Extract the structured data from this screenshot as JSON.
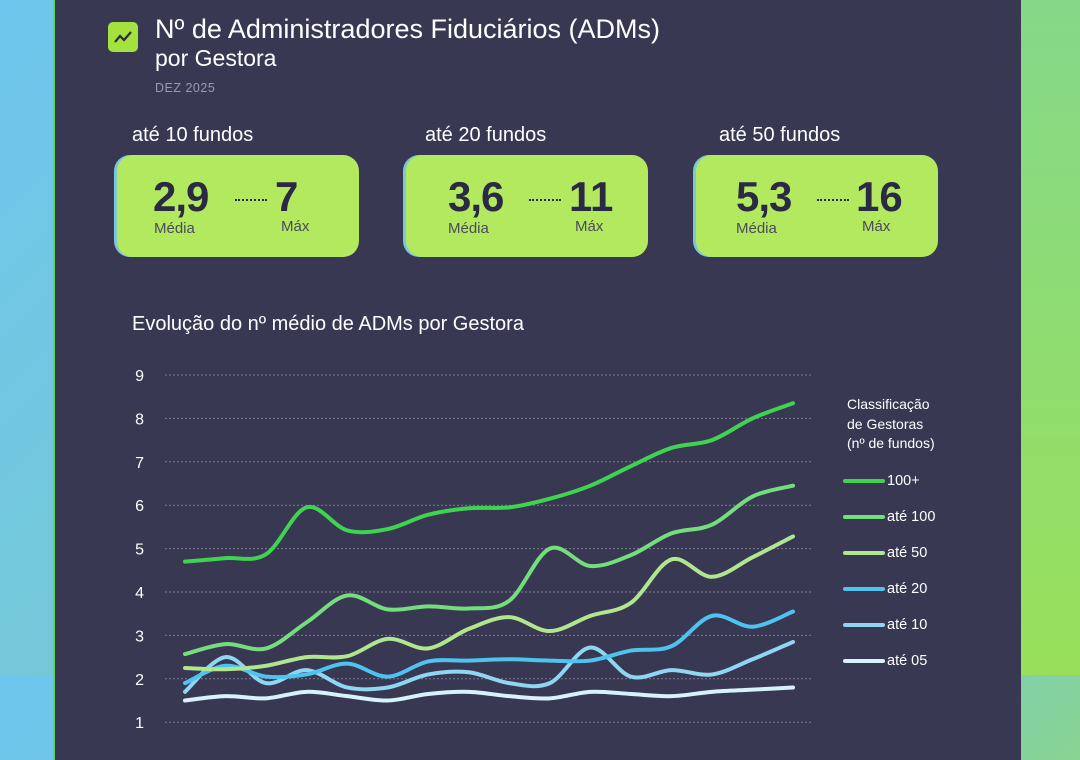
{
  "header": {
    "title": "Nº de Administradores Fiduciários (ADMs)",
    "subtitle": "por Gestora",
    "date": "DEZ 2025",
    "icon": "trending-up-icon"
  },
  "kpis": [
    {
      "label": "até 10 fundos",
      "avg": "2,9",
      "avg_label": "Média",
      "max": "7",
      "max_label": "Máx"
    },
    {
      "label": "até 20 fundos",
      "avg": "3,6",
      "avg_label": "Média",
      "max": "11",
      "max_label": "Máx"
    },
    {
      "label": "até 50 fundos",
      "avg": "5,3",
      "avg_label": "Média",
      "max": "16",
      "max_label": "Máx"
    }
  ],
  "colors": {
    "panel": "#383853",
    "card": "#b3e95e",
    "accent": "#a6e23d"
  },
  "chart_data": {
    "type": "line",
    "title": "Evolução do nº médio de ADMs por Gestora",
    "legend_title": [
      "Classificação",
      "de Gestoras",
      "(nº de fundos)"
    ],
    "legend_position": "right",
    "grid": true,
    "ylim": [
      0,
      9
    ],
    "yticks": [
      1,
      2,
      3,
      4,
      5,
      6,
      7,
      8,
      9
    ],
    "series": [
      {
        "name": "100+",
        "color": "#3fd44f",
        "values": [
          4.7,
          4.78,
          4.87,
          5.95,
          5.42,
          5.45,
          5.78,
          5.93,
          5.95,
          6.15,
          6.45,
          6.9,
          7.32,
          7.5,
          8.0,
          8.35
        ]
      },
      {
        "name": "até 100",
        "color": "#74dd7c",
        "values": [
          2.57,
          2.8,
          2.7,
          3.3,
          3.92,
          3.6,
          3.67,
          3.62,
          3.8,
          5.0,
          4.6,
          4.85,
          5.35,
          5.55,
          6.2,
          6.45
        ]
      },
      {
        "name": "até 50",
        "color": "#b0e68e",
        "values": [
          2.25,
          2.22,
          2.3,
          2.5,
          2.52,
          2.92,
          2.7,
          3.15,
          3.42,
          3.1,
          3.45,
          3.75,
          4.75,
          4.35,
          4.8,
          5.28
        ]
      },
      {
        "name": "até 20",
        "color": "#4fc3f0",
        "values": [
          1.9,
          2.3,
          2.05,
          2.1,
          2.35,
          2.05,
          2.4,
          2.42,
          2.45,
          2.42,
          2.42,
          2.65,
          2.75,
          3.45,
          3.2,
          3.55
        ]
      },
      {
        "name": "até 10",
        "color": "#8fd6f2",
        "values": [
          1.7,
          2.5,
          1.9,
          2.2,
          1.8,
          1.8,
          2.1,
          2.15,
          1.9,
          1.9,
          2.72,
          2.05,
          2.2,
          2.1,
          2.45,
          2.85
        ]
      },
      {
        "name": "até 05",
        "color": "#d8f2fb",
        "values": [
          1.5,
          1.6,
          1.55,
          1.7,
          1.6,
          1.5,
          1.65,
          1.7,
          1.6,
          1.55,
          1.7,
          1.65,
          1.6,
          1.7,
          1.75,
          1.8
        ]
      }
    ]
  }
}
